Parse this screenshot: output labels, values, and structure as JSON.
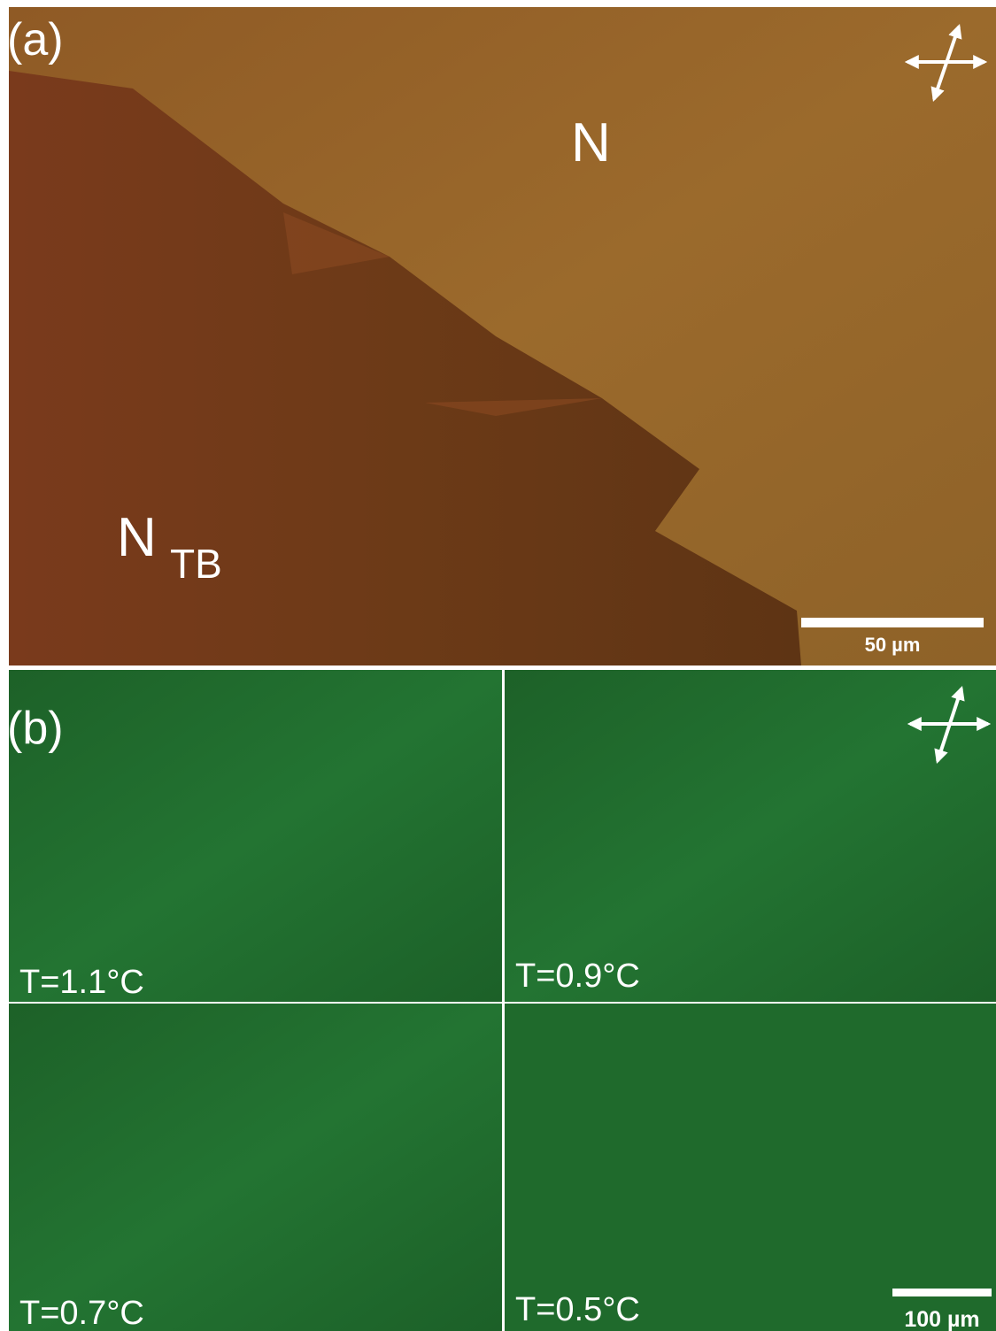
{
  "panel_a": {
    "label": "(a)",
    "phase_n": "N",
    "phase_ntb": {
      "main": "N",
      "subscript": "TB"
    },
    "scale_bar": "50 µm"
  },
  "panel_b": {
    "label": "(b)",
    "tiles": [
      {
        "temperature": "T=1.1°C"
      },
      {
        "temperature": "T=0.9°C"
      },
      {
        "temperature": "T=0.7°C"
      },
      {
        "temperature": "T=0.5°C"
      }
    ],
    "scale_bar": "100 µm"
  }
}
